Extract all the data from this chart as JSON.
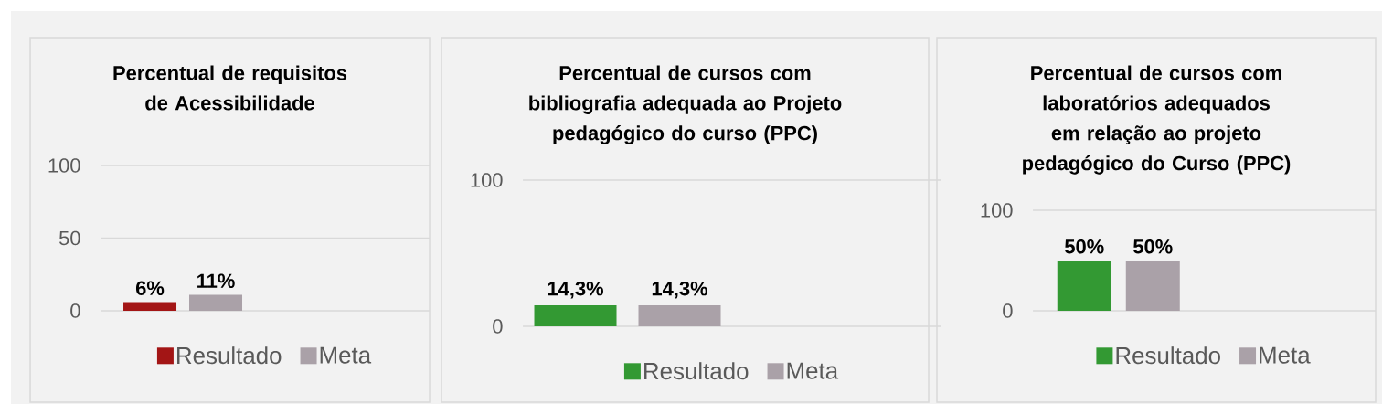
{
  "chart_data": [
    {
      "type": "bar",
      "title": "Percentual de requisitos de Acessibilidade",
      "categories": [
        null
      ],
      "ylim": [
        0,
        100
      ],
      "yticks": [
        0,
        50,
        100
      ],
      "grid": "y",
      "legend": "bottom",
      "tick_labels": "y",
      "series": [
        {
          "name": "Resultado",
          "color": "#a31515",
          "values": [
            6
          ],
          "value_labels": [
            "6%"
          ]
        },
        {
          "name": "Meta",
          "color": "#aaa1a8",
          "values": [
            11
          ],
          "value_labels": [
            "11%"
          ]
        }
      ]
    },
    {
      "type": "bar",
      "title": "Percentual de cursos com bibliografia adequada ao Projeto pedagógico do curso (PPC)",
      "categories": [
        null
      ],
      "ylim": [
        0,
        100
      ],
      "yticks": [
        0,
        100
      ],
      "grid": "y",
      "legend": "bottom",
      "tick_labels": "y",
      "series": [
        {
          "name": "Resultado",
          "color": "#339933",
          "values": [
            14.3
          ],
          "value_labels": [
            "14,3%"
          ]
        },
        {
          "name": "Meta",
          "color": "#aaa1a8",
          "values": [
            14.3
          ],
          "value_labels": [
            "14,3%"
          ]
        }
      ]
    },
    {
      "type": "bar",
      "title": "Percentual de cursos com laboratórios adequados em relação ao projeto pedagógico do Curso (PPC)",
      "categories": [
        null
      ],
      "ylim": [
        0,
        100
      ],
      "yticks": [
        0,
        100
      ],
      "grid": "y",
      "legend": "bottom",
      "tick_labels": "y",
      "series": [
        {
          "name": "Resultado",
          "color": "#339933",
          "values": [
            50
          ],
          "value_labels": [
            "50%"
          ]
        },
        {
          "name": "Meta",
          "color": "#aaa1a8",
          "values": [
            50
          ],
          "value_labels": [
            "50%"
          ]
        }
      ]
    }
  ]
}
